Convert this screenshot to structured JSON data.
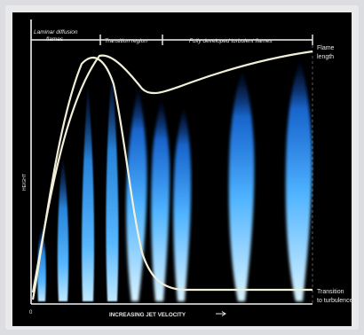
{
  "regions": {
    "laminar_line1": "Laminar diffusion",
    "laminar_line2": "flames",
    "transition": "Transition region",
    "turbulent": "Fully developed turbulent flames"
  },
  "axes": {
    "xlabel": "INCREASING JET VELOCITY",
    "ylabel": "HEIGHT",
    "origin": "0"
  },
  "curves": {
    "flame_length_line1": "Flame",
    "flame_length_line2": "length",
    "transition_line1": "Transition",
    "transition_line2": "to turbulence"
  },
  "colors": {
    "flame_core": "#bfe9ff",
    "flame_mid": "#2e9bff",
    "flame_edge": "#0a2f8a",
    "curve": "#f2efd8",
    "axis": "#f2f2f2"
  }
}
